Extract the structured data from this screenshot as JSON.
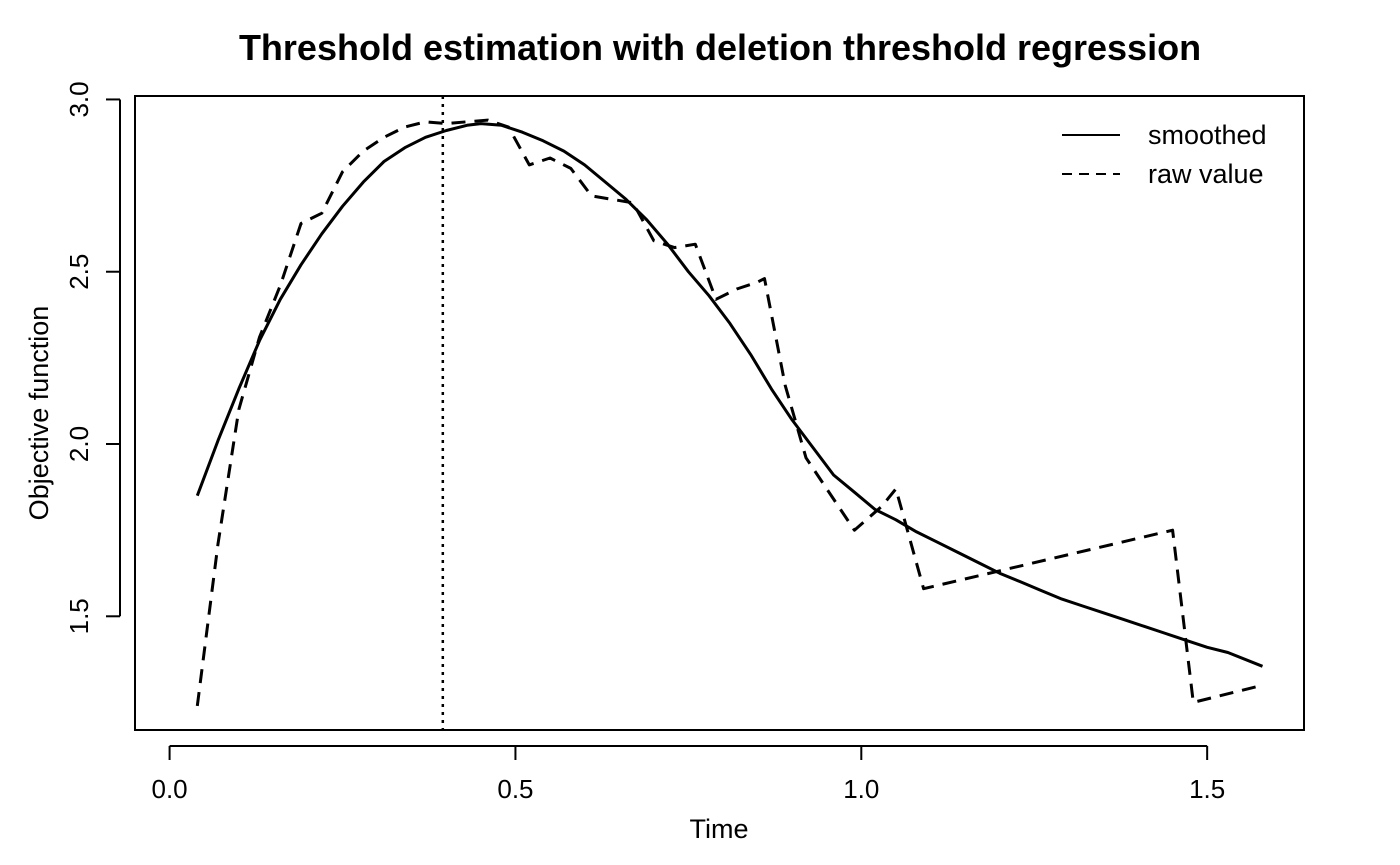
{
  "chart_data": {
    "type": "line",
    "title": "Threshold estimation with deletion threshold regression",
    "xlabel": "Time",
    "ylabel": "Objective function",
    "xlim": [
      -0.05,
      1.64
    ],
    "ylim": [
      1.17,
      3.01
    ],
    "xticks": [
      0.0,
      0.5,
      1.0,
      1.5
    ],
    "xtick_labels": [
      "0.0",
      "0.5",
      "1.0",
      "1.5"
    ],
    "yticks": [
      1.5,
      2.0,
      2.5,
      3.0
    ],
    "ytick_labels": [
      "1.5",
      "2.0",
      "2.5",
      "3.0"
    ],
    "grid": false,
    "legend_position": "top-right",
    "vline": {
      "x": 0.395,
      "style": "dotted"
    },
    "series": [
      {
        "name": "smoothed",
        "style": "solid",
        "x": [
          0.04,
          0.07,
          0.1,
          0.13,
          0.16,
          0.19,
          0.22,
          0.25,
          0.28,
          0.31,
          0.34,
          0.37,
          0.4,
          0.43,
          0.45,
          0.48,
          0.51,
          0.54,
          0.57,
          0.6,
          0.63,
          0.66,
          0.69,
          0.72,
          0.75,
          0.78,
          0.81,
          0.84,
          0.87,
          0.9,
          0.93,
          0.96,
          0.99,
          1.02,
          1.05,
          1.08,
          1.11,
          1.14,
          1.17,
          1.2,
          1.23,
          1.26,
          1.29,
          1.32,
          1.35,
          1.38,
          1.41,
          1.44,
          1.47,
          1.5,
          1.53,
          1.58
        ],
        "y": [
          1.85,
          2.01,
          2.16,
          2.3,
          2.42,
          2.52,
          2.61,
          2.69,
          2.76,
          2.82,
          2.86,
          2.89,
          2.91,
          2.925,
          2.93,
          2.925,
          2.905,
          2.88,
          2.85,
          2.81,
          2.76,
          2.71,
          2.65,
          2.58,
          2.5,
          2.43,
          2.35,
          2.26,
          2.16,
          2.07,
          1.99,
          1.91,
          1.86,
          1.81,
          1.78,
          1.745,
          1.715,
          1.685,
          1.655,
          1.625,
          1.6,
          1.575,
          1.55,
          1.53,
          1.51,
          1.49,
          1.47,
          1.45,
          1.43,
          1.41,
          1.395,
          1.355
        ]
      },
      {
        "name": "raw value",
        "style": "dashed",
        "x": [
          0.04,
          0.07,
          0.1,
          0.13,
          0.16,
          0.19,
          0.22,
          0.25,
          0.28,
          0.31,
          0.34,
          0.37,
          0.4,
          0.43,
          0.46,
          0.49,
          0.52,
          0.55,
          0.58,
          0.61,
          0.64,
          0.67,
          0.7,
          0.73,
          0.76,
          0.79,
          0.82,
          0.85,
          0.86,
          0.89,
          0.92,
          0.95,
          0.99,
          1.03,
          1.05,
          1.09,
          1.45,
          1.48,
          1.58
        ],
        "y": [
          1.24,
          1.71,
          2.1,
          2.31,
          2.46,
          2.64,
          2.67,
          2.79,
          2.85,
          2.89,
          2.92,
          2.935,
          2.93,
          2.935,
          2.94,
          2.92,
          2.81,
          2.83,
          2.8,
          2.72,
          2.71,
          2.7,
          2.59,
          2.57,
          2.58,
          2.42,
          2.45,
          2.47,
          2.48,
          2.17,
          1.96,
          1.87,
          1.75,
          1.82,
          1.87,
          1.58,
          1.75,
          1.25,
          1.3
        ]
      }
    ]
  }
}
